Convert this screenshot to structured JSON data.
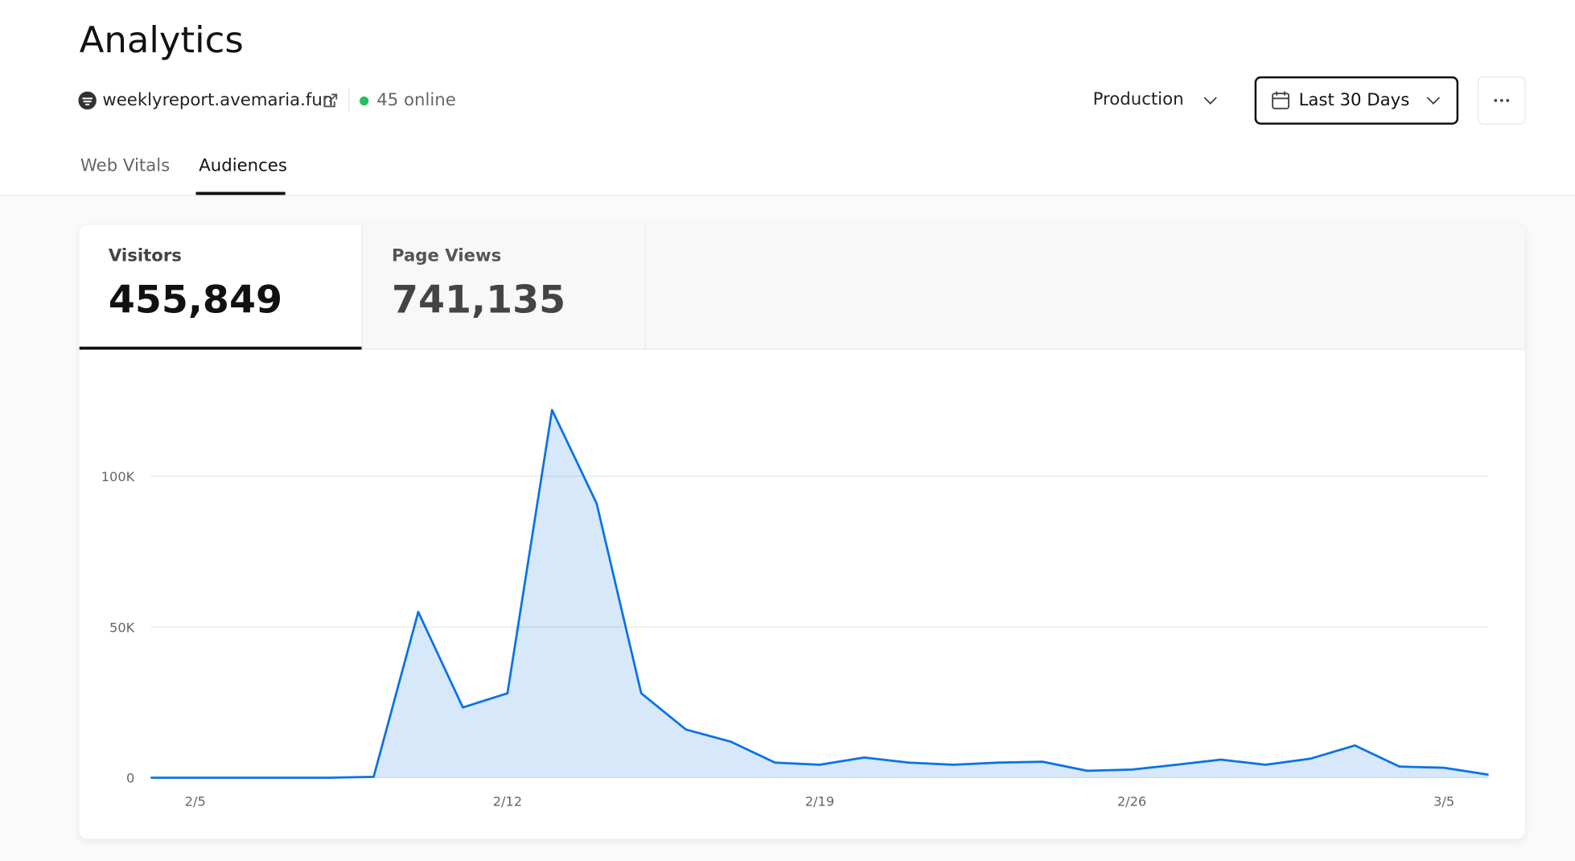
{
  "header": {
    "title": "Analytics",
    "site": "weeklyreport.avemaria.fun",
    "online": "45 online",
    "environment": "Production",
    "range": "Last 30 Days"
  },
  "tabs": [
    "Web Vitals",
    "Audiences"
  ],
  "metrics": [
    {
      "label": "Visitors",
      "value": "455,849"
    },
    {
      "label": "Page Views",
      "value": "741,135"
    }
  ],
  "chart_data": {
    "type": "area",
    "color": "#0a72e6",
    "categories": [
      null,
      "2/5",
      null,
      null,
      null,
      null,
      null,
      null,
      "2/12",
      null,
      null,
      null,
      null,
      null,
      null,
      "2/19",
      null,
      null,
      null,
      null,
      null,
      null,
      "2/26",
      null,
      null,
      null,
      null,
      null,
      null,
      "3/5",
      null
    ],
    "values": [
      0,
      0,
      0,
      0,
      0,
      300,
      55000,
      23300,
      28000,
      122000,
      91000,
      28000,
      16000,
      12000,
      5000,
      4300,
      6700,
      5000,
      4300,
      5000,
      5300,
      2300,
      2700,
      4300,
      6000,
      4300,
      6300,
      10700,
      3700,
      3300,
      1000
    ],
    "ylim": [
      0,
      130000
    ],
    "yticks": [
      0,
      {
        "value": 50000,
        "label": "50K"
      },
      {
        "value": 100000,
        "label": "100K"
      }
    ],
    "grid": true
  }
}
